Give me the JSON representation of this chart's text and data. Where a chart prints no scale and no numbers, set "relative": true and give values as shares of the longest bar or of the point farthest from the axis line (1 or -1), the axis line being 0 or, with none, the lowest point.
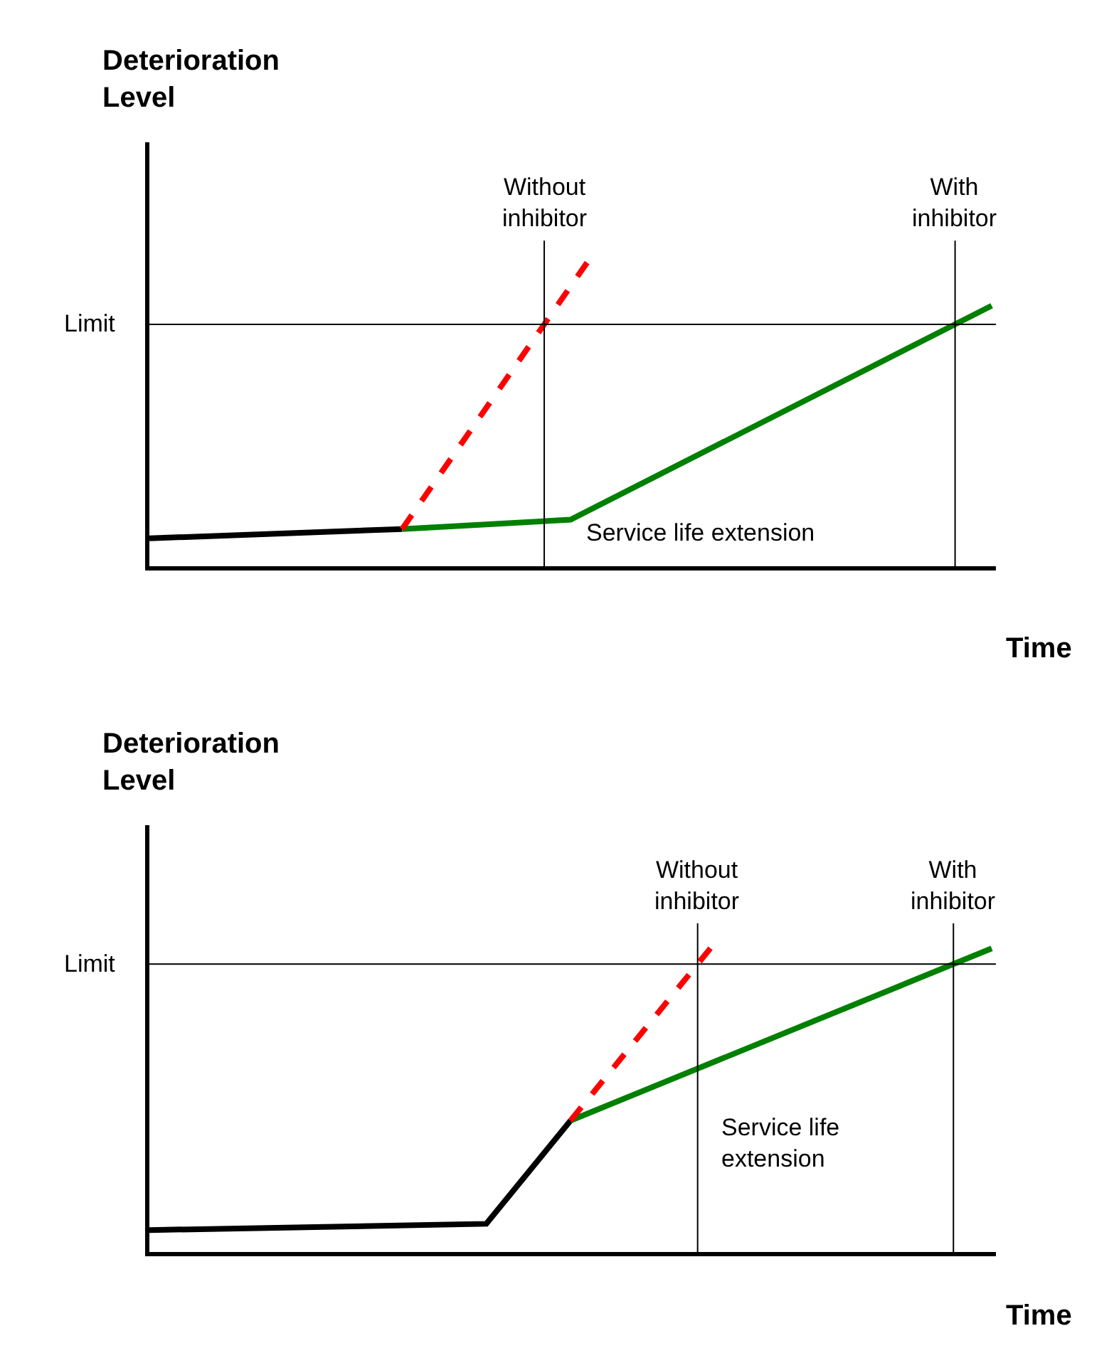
{
  "chart_data": [
    {
      "type": "line",
      "relative": true,
      "xlabel": "Time",
      "ylabel": "Deterioration\nLevel",
      "categories": [
        null,
        null,
        null,
        null,
        null,
        null,
        null,
        null,
        null,
        null,
        null,
        null,
        null,
        null,
        null,
        null,
        null,
        null,
        null,
        null,
        null,
        null,
        null,
        null,
        null,
        null,
        null,
        null,
        null,
        null,
        null,
        null,
        null,
        null,
        null,
        null,
        null,
        null,
        null,
        null,
        null
      ],
      "series": [
        {
          "color": "#000000",
          "values": [
            0.09,
            null,
            null,
            null,
            null,
            null,
            null,
            null,
            null,
            null,
            null,
            null,
            0.12,
            null,
            null,
            null,
            null,
            null,
            null,
            null,
            null,
            null,
            null,
            null,
            null,
            null,
            null,
            null,
            null,
            null,
            null,
            null,
            null,
            null,
            null,
            null,
            null,
            null,
            null,
            null,
            null
          ],
          "line_style": "solid"
        },
        {
          "color": "#008000",
          "values": [
            null,
            null,
            null,
            null,
            null,
            null,
            null,
            null,
            null,
            null,
            null,
            null,
            0.12,
            null,
            null,
            null,
            null,
            null,
            null,
            null,
            0.15,
            null,
            null,
            null,
            null,
            null,
            null,
            null,
            null,
            null,
            null,
            null,
            null,
            null,
            null,
            null,
            null,
            null,
            null,
            null,
            0.84
          ],
          "line_style": "solid"
        },
        {
          "color": "#ff0000",
          "values": [
            null,
            null,
            null,
            null,
            null,
            null,
            null,
            null,
            null,
            null,
            null,
            null,
            0.12,
            null,
            null,
            null,
            null,
            null,
            null,
            null,
            null,
            1,
            null,
            null,
            null,
            null,
            null,
            null,
            null,
            null,
            null,
            null,
            null,
            null,
            null,
            null,
            null,
            null,
            null,
            null,
            null
          ],
          "line_style": "dashed"
        }
      ],
      "ref_lines": [
        {
          "axis": "y",
          "value": 0.78,
          "label": "Limit"
        }
      ],
      "annotations": [
        "Without\ninhibitor",
        "With\ninhibitor",
        "Service life extension"
      ]
    },
    {
      "type": "line",
      "relative": true,
      "xlabel": "Time",
      "ylabel": "Deterioration\nLevel",
      "categories": [
        null,
        null,
        null,
        null,
        null,
        null,
        null,
        null,
        null,
        null,
        null,
        null,
        null,
        null,
        null,
        null,
        null,
        null,
        null,
        null,
        null,
        null,
        null,
        null,
        null,
        null,
        null,
        null,
        null,
        null,
        null,
        null,
        null,
        null,
        null,
        null,
        null,
        null,
        null,
        null,
        null
      ],
      "series": [
        {
          "color": "#000000",
          "values": [
            0.07,
            null,
            null,
            null,
            null,
            null,
            null,
            null,
            null,
            null,
            null,
            null,
            null,
            null,
            null,
            null,
            0.09,
            null,
            null,
            null,
            0.42,
            null,
            null,
            null,
            null,
            null,
            null,
            null,
            null,
            null,
            null,
            null,
            null,
            null,
            null,
            null,
            null,
            null,
            null,
            null,
            null
          ],
          "line_style": "solid"
        },
        {
          "color": "#008000",
          "values": [
            null,
            null,
            null,
            null,
            null,
            null,
            null,
            null,
            null,
            null,
            null,
            null,
            null,
            null,
            null,
            null,
            null,
            null,
            null,
            null,
            0.42,
            null,
            null,
            null,
            null,
            null,
            null,
            null,
            null,
            null,
            null,
            null,
            null,
            null,
            null,
            null,
            null,
            null,
            null,
            null,
            0.97
          ],
          "line_style": "solid"
        },
        {
          "color": "#ff0000",
          "values": [
            null,
            null,
            null,
            null,
            null,
            null,
            null,
            null,
            null,
            null,
            null,
            null,
            null,
            null,
            null,
            null,
            null,
            null,
            null,
            null,
            0.42,
            null,
            null,
            null,
            null,
            null,
            null,
            1,
            null,
            null,
            null,
            null,
            null,
            null,
            null,
            null,
            null,
            null,
            null,
            null,
            null
          ],
          "line_style": "dashed"
        }
      ],
      "ref_lines": [
        {
          "axis": "y",
          "value": 0.92,
          "label": "Limit"
        }
      ],
      "annotations": [
        "Without\ninhibitor",
        "With\ninhibitor",
        "Service life\nextension"
      ]
    }
  ]
}
